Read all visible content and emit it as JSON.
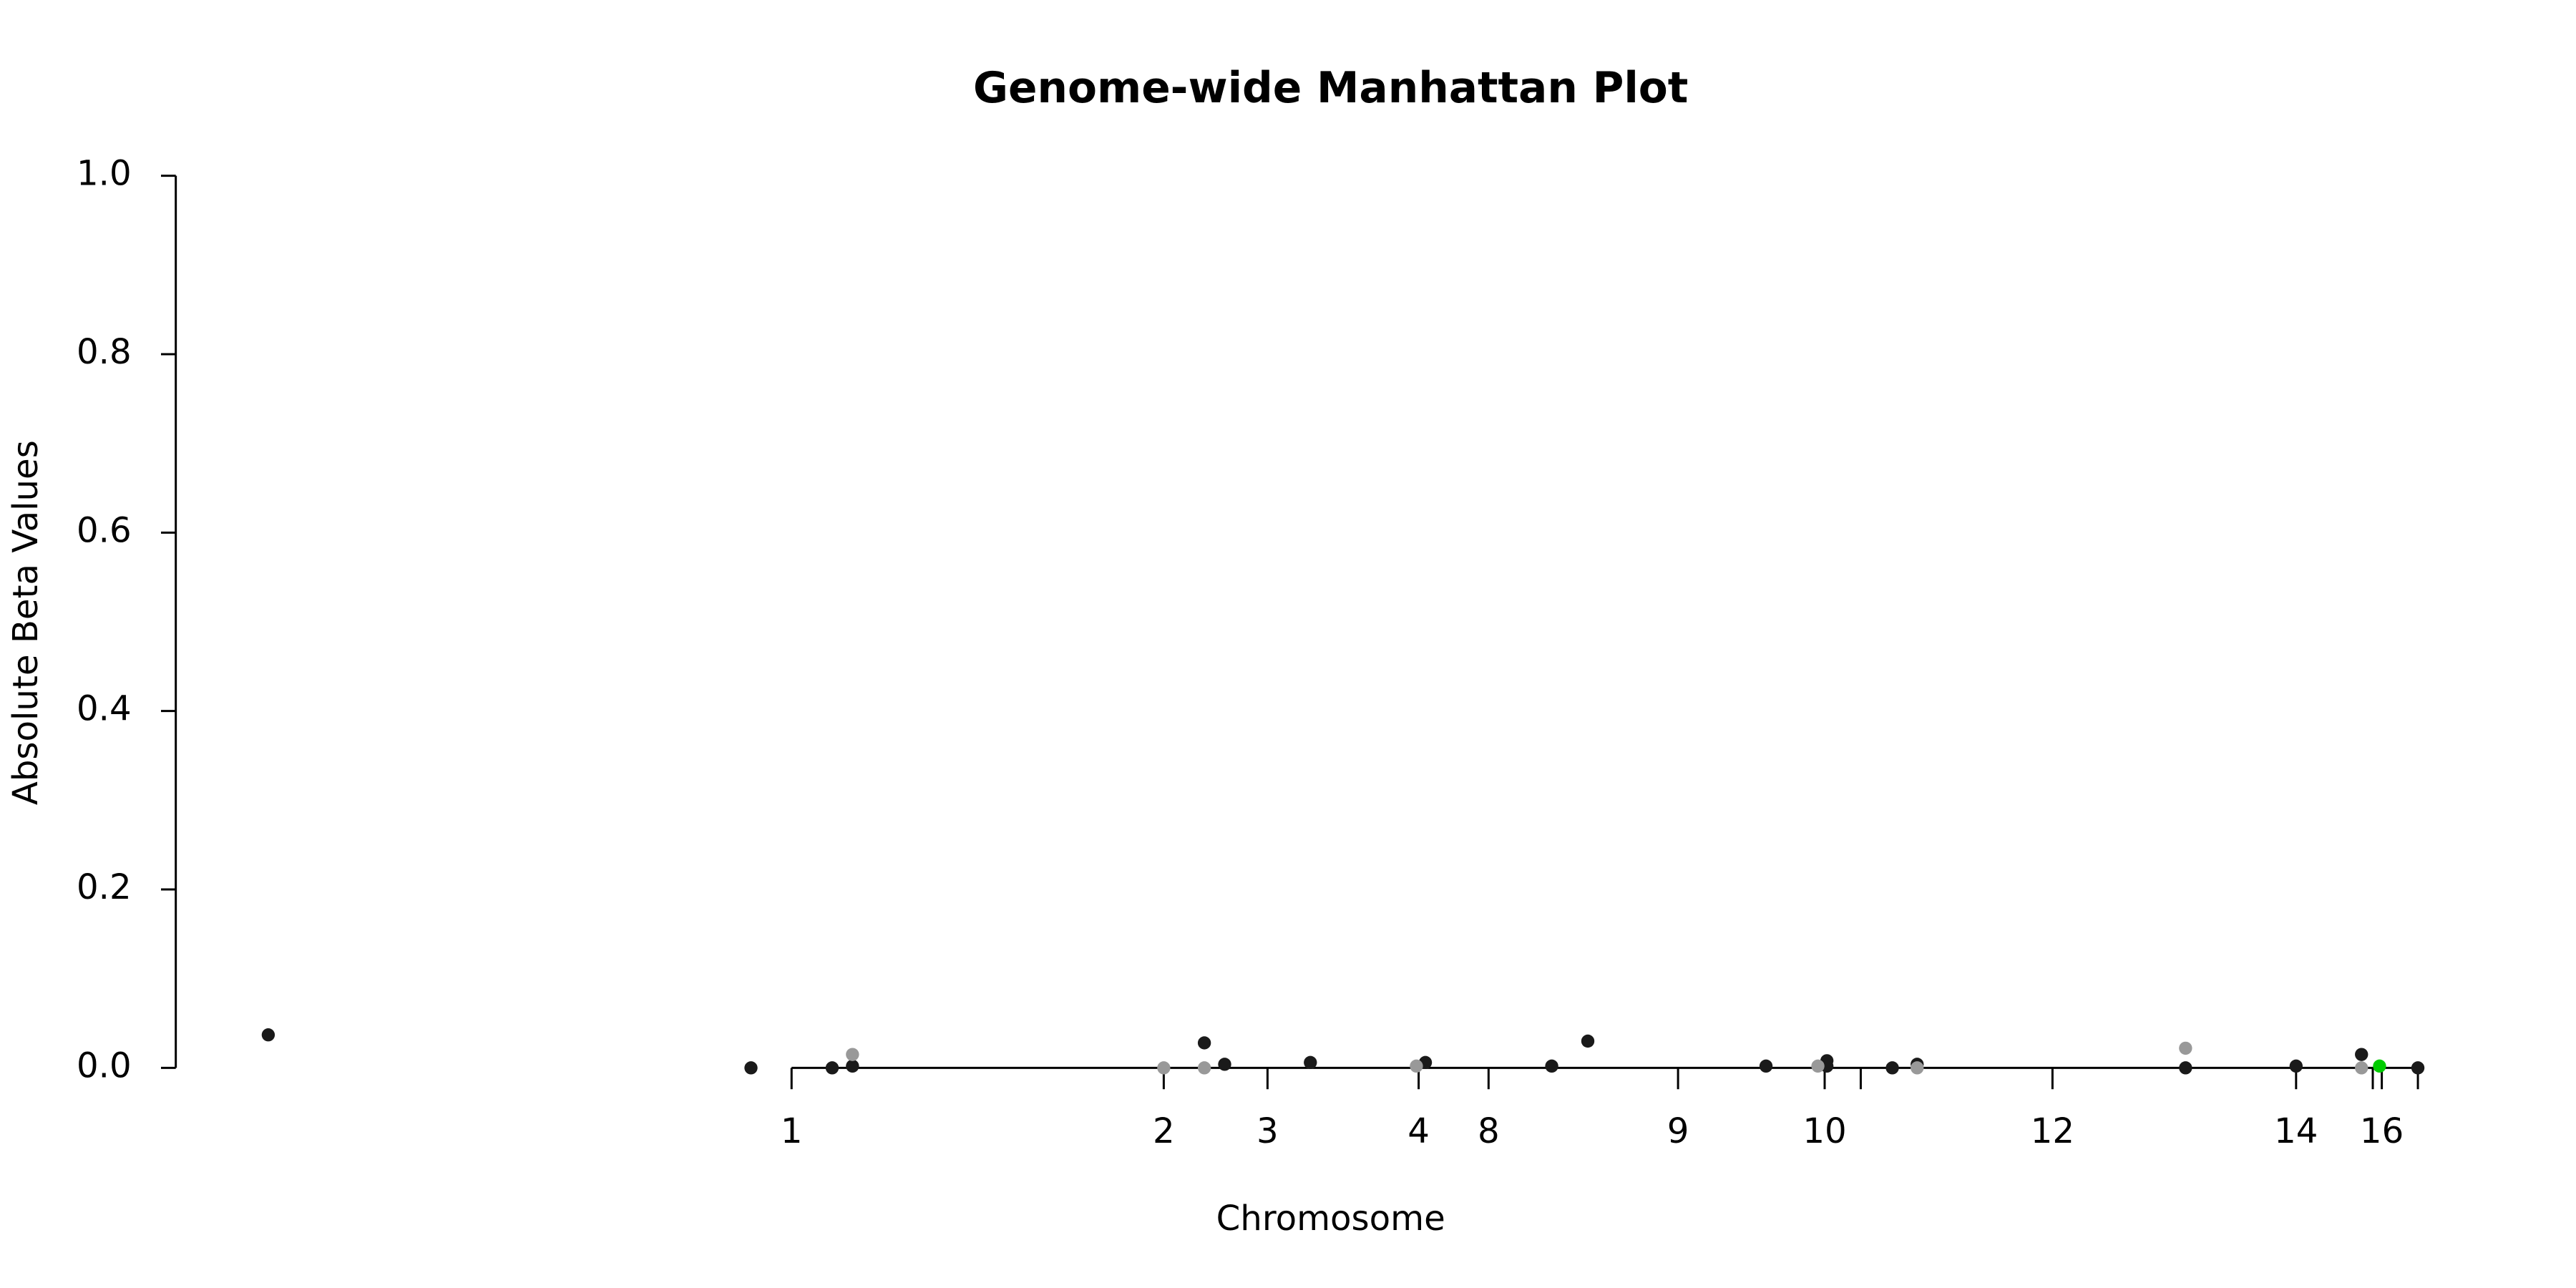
{
  "chart_data": {
    "type": "scatter",
    "title": "Genome-wide Manhattan Plot",
    "x_label": "Chromosome",
    "y_label": "Absolute Beta Values",
    "xlim": [
      0,
      100
    ],
    "ylim": [
      0,
      1.0
    ],
    "yticks": [
      {
        "value": 0,
        "label": "0.0"
      },
      {
        "value": 0.2,
        "label": "0.2"
      },
      {
        "value": 0.4,
        "label": "0.4"
      },
      {
        "value": 0.6,
        "label": "0.6"
      },
      {
        "value": 0.8,
        "label": "0.8"
      },
      {
        "value": 1.0,
        "label": "1.0"
      }
    ],
    "xticks": [
      {
        "value": 27.3,
        "label": "1"
      },
      {
        "value": 43.8,
        "label": "2"
      },
      {
        "value": 48.4,
        "label": "3"
      },
      {
        "value": 55.1,
        "label": "4"
      },
      {
        "value": 58.2,
        "label": "8"
      },
      {
        "value": 66.6,
        "label": "9"
      },
      {
        "value": 73.1,
        "label": "10"
      },
      {
        "value": 74.7,
        "label": null
      },
      {
        "value": 83.2,
        "label": "12"
      },
      {
        "value": 94.0,
        "label": "14"
      },
      {
        "value": 97.4,
        "label": null
      },
      {
        "value": 97.8,
        "label": "16"
      },
      {
        "value": 99.4,
        "label": null
      }
    ],
    "grid": false,
    "series": [
      {
        "color": "#1a1a1a",
        "x": [
          4.1,
          25.5,
          29.1,
          30.0,
          45.6,
          46.5,
          50.3,
          55.4,
          61.0,
          62.6,
          70.5,
          73.2,
          73.2,
          76.1,
          77.2,
          89.1,
          94.0,
          96.9,
          99.4
        ],
        "values": [
          0.037,
          0,
          0,
          0.002,
          0.028,
          0.004,
          0.006,
          0.006,
          0.002,
          0.03,
          0.002,
          0.008,
          0.002,
          0,
          0.004,
          0,
          0.002,
          0.015,
          0
        ]
      },
      {
        "color": "#999999",
        "x": [
          30.0,
          43.8,
          45.6,
          55.0,
          72.8,
          77.2,
          89.1,
          96.9
        ],
        "values": [
          0.015,
          0,
          0,
          0.002,
          0.002,
          0,
          0.022,
          0
        ]
      },
      {
        "color": "#00cc00",
        "x": [
          97.7
        ],
        "values": [
          0.002
        ]
      }
    ]
  }
}
